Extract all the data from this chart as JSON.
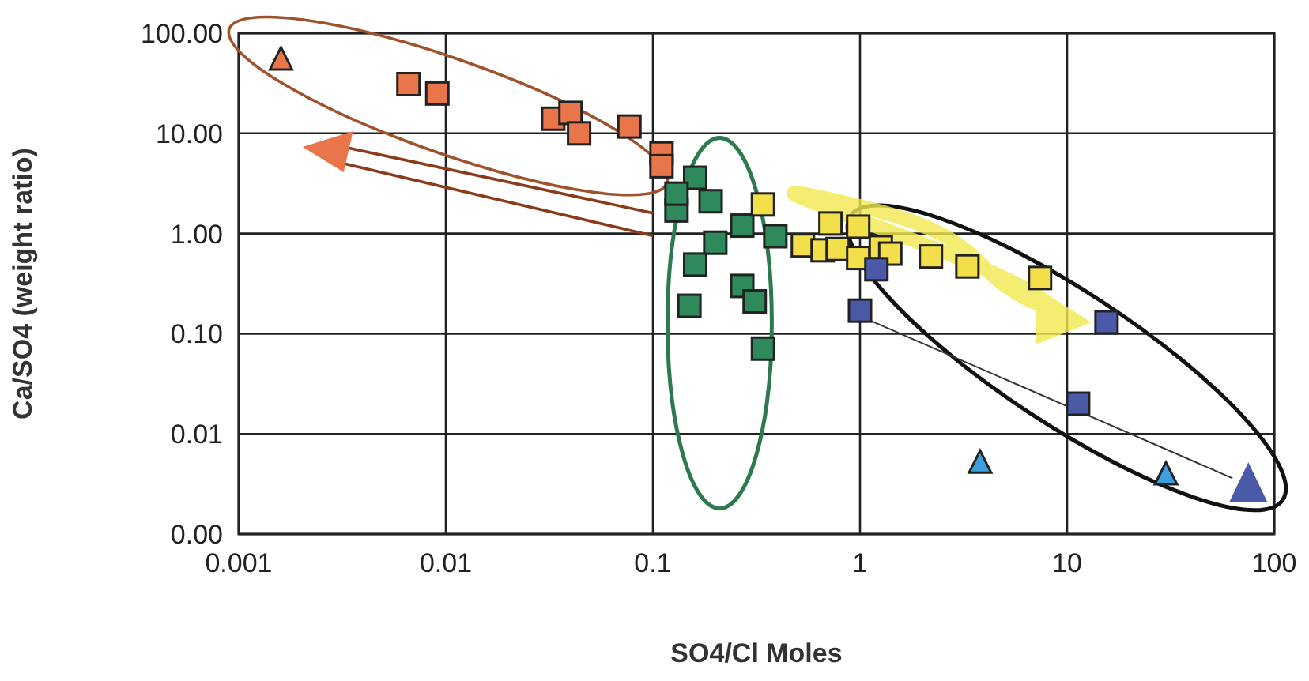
{
  "chart_data": {
    "type": "scatter",
    "xlabel": "SO4/Cl Moles",
    "ylabel": "Ca/SO4 (weight ratio)",
    "log": "xy",
    "grid": true,
    "xlim": [
      0.001,
      100
    ],
    "xticks": [
      0.001,
      0.01,
      0.1,
      1,
      10,
      100
    ],
    "ylim": [
      0.001,
      100
    ],
    "yticks": [
      {
        "value": 0.001,
        "label": "0.00"
      },
      {
        "value": 0.01,
        "label": "0.01"
      },
      {
        "value": 0.1,
        "label": "0.10"
      },
      {
        "value": 1,
        "label": "1.00"
      },
      {
        "value": 10,
        "label": "10.00"
      },
      {
        "value": 100,
        "label": "100.00"
      }
    ],
    "series": [
      {
        "color": "#e8764a",
        "marker": "square",
        "x": [
          0.0066,
          0.0091,
          0.033,
          0.04,
          0.044,
          0.077,
          0.11,
          0.11
        ],
        "values": [
          31,
          25,
          14,
          16,
          10,
          11.7,
          6.3,
          4.7
        ]
      },
      {
        "color": "#e8764a",
        "marker": "triangle",
        "x": [
          0.0016
        ],
        "values": [
          54
        ]
      },
      {
        "color": "#2e8a5a",
        "marker": "square",
        "x": [
          0.16,
          0.19,
          0.13,
          0.13,
          0.27,
          0.39,
          0.2,
          0.16,
          0.27,
          0.31,
          0.15,
          0.34
        ],
        "values": [
          3.6,
          2.1,
          1.7,
          2.5,
          1.2,
          0.94,
          0.81,
          0.49,
          0.3,
          0.21,
          0.19,
          0.071
        ]
      },
      {
        "color": "#f3df4a",
        "marker": "square",
        "x": [
          0.34,
          0.53,
          0.72,
          0.66,
          0.78,
          0.98,
          1.26,
          0.98,
          1.4,
          2.2,
          3.3,
          7.4
        ],
        "values": [
          1.95,
          0.76,
          1.26,
          0.68,
          0.7,
          0.57,
          0.73,
          1.17,
          0.63,
          0.59,
          0.47,
          0.36
        ]
      },
      {
        "color": "#4a5aa8",
        "marker": "square",
        "x": [
          1.2,
          1.0,
          15.5,
          11.3
        ],
        "values": [
          0.44,
          0.17,
          0.13,
          0.02
        ]
      },
      {
        "color": "#3aa0e0",
        "marker": "triangle",
        "x": [
          3.8,
          30
        ],
        "values": [
          0.0051,
          0.0039
        ]
      }
    ]
  }
}
